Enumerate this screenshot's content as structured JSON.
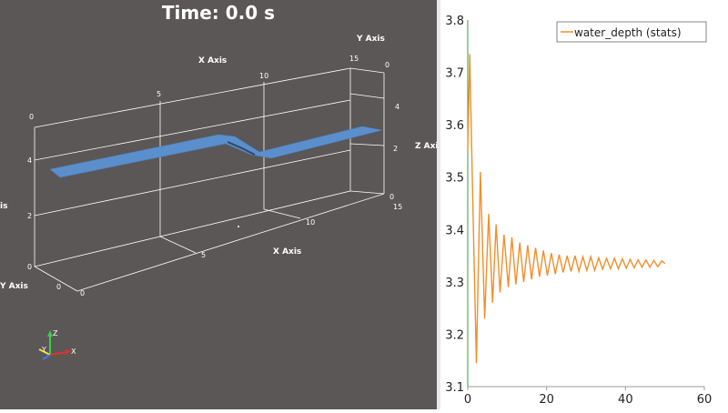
{
  "render_view": {
    "time_label": "Time: 0.0 s",
    "axes": {
      "x_axis_label": "X Axis",
      "y_axis_label": "Y Axis",
      "z_axis_label": "Z Axis",
      "top_x_ticks": [
        "0",
        "5",
        "10",
        "15"
      ],
      "top_y_ticks": [
        "0"
      ],
      "bottom_x_ticks": [
        "0",
        "5",
        "10",
        "15"
      ],
      "left_z_ticks": [
        "0",
        "2",
        "4"
      ],
      "right_z_ticks": [
        "2",
        "4"
      ],
      "right_y_ticks": [
        "0"
      ],
      "cropped_label": "is"
    },
    "orientation": {
      "x": "X",
      "y": "Y",
      "z": "Z"
    },
    "colors": {
      "background": "#5b5756",
      "surface": "#5b8fcc",
      "grid": "#ffffff"
    }
  },
  "chart_data": {
    "type": "line",
    "xlim": [
      0,
      60
    ],
    "ylim": [
      3.1,
      3.8
    ],
    "x_ticks": [
      "0",
      "20",
      "40",
      "60"
    ],
    "y_ticks": [
      "3.1",
      "3.2",
      "3.3",
      "3.4",
      "3.5",
      "3.6",
      "3.7",
      "3.8"
    ],
    "legend_position": "top-right",
    "series": [
      {
        "name": "water_depth (stats)",
        "color": "#f28e2b",
        "x": [
          0,
          0.5,
          1.3,
          2.2,
          3.2,
          4.3,
          5.3,
          6.3,
          7.2,
          8.2,
          9.2,
          10.3,
          11.2,
          12.2,
          13.2,
          14.2,
          15.2,
          16.2,
          17.2,
          18.2,
          19.2,
          20.2,
          21.2,
          22.2,
          23.2,
          24.2,
          25.2,
          26.2,
          27.2,
          28.2,
          29.2,
          30.2,
          31.2,
          32.2,
          33.2,
          34.2,
          35.2,
          36.2,
          37.2,
          38.2,
          39.2,
          40.2,
          41.2,
          42.2,
          43.2,
          44.2,
          45.2,
          46.2,
          47.2,
          48.2,
          49.2,
          50
        ],
        "y": [
          3.55,
          3.735,
          3.45,
          3.145,
          3.51,
          3.23,
          3.43,
          3.26,
          3.41,
          3.28,
          3.39,
          3.29,
          3.385,
          3.295,
          3.375,
          3.3,
          3.37,
          3.305,
          3.365,
          3.31,
          3.36,
          3.312,
          3.355,
          3.315,
          3.352,
          3.318,
          3.35,
          3.32,
          3.35,
          3.32,
          3.348,
          3.322,
          3.348,
          3.322,
          3.346,
          3.324,
          3.345,
          3.325,
          3.345,
          3.325,
          3.344,
          3.326,
          3.343,
          3.327,
          3.342,
          3.328,
          3.342,
          3.328,
          3.341,
          3.329,
          3.34,
          3.335
        ]
      }
    ]
  }
}
